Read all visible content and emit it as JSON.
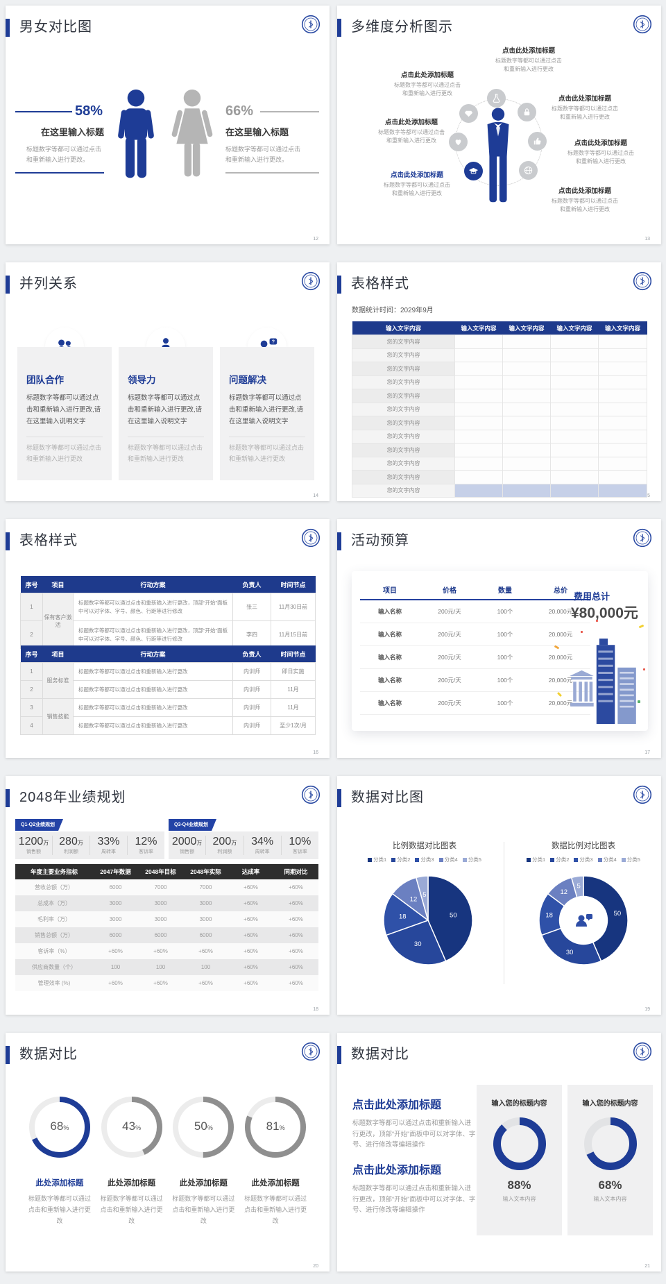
{
  "canvas": {
    "bg": "#eef0f2"
  },
  "brand": {
    "primary": "#1e3c96",
    "table_header": "#1e3a8c",
    "dark_header": "#2e2e2e",
    "highlight_row": "#c6d0e8"
  },
  "shared": {
    "percent_symbol": "%"
  },
  "slides": {
    "s12": {
      "page_num": "12",
      "title": "男女对比图",
      "left": {
        "percent": "58%",
        "subtitle": "在这里输入标题",
        "desc": "标题数字等都可以通过点击和重新输入进行更改。"
      },
      "right": {
        "percent": "66%",
        "subtitle": "在这里输入标题",
        "desc": "标题数字等都可以通过点击和重新输入进行更改。"
      }
    },
    "s13": {
      "page_num": "13",
      "title": "多维度分析图示",
      "item_title": "点击此处添加标题",
      "item_desc": "标题数字等都可以通过点击和重新输入进行更改"
    },
    "s14": {
      "page_num": "14",
      "title": "并列关系",
      "question_mark": "?",
      "card_desc": "标题数字等都可以通过点击和重新输入进行更改,请在这里输入说明文字",
      "card_note": "标题数字等都可以通过点击和重新输入进行更改",
      "cards": [
        {
          "title": "团队合作"
        },
        {
          "title": "领导力"
        },
        {
          "title": "问题解决"
        }
      ]
    },
    "s15": {
      "page_num": "15",
      "title": "表格样式",
      "subtitle": "数据统计时间：2029年9月",
      "header": "输入文字内容",
      "cell": "您的文字内容"
    },
    "s16": {
      "page_num": "16",
      "title": "表格样式",
      "headers": [
        "序号",
        "项目",
        "行动方案",
        "负责人",
        "时间节点"
      ],
      "table_a": {
        "group": "保有客户激活",
        "action": "标题数字等都可以通过点击和重新输入进行更改，顶部“开始”面板中可以对字体、字号、颜色、行距等进行修改",
        "rows": [
          {
            "no": "1",
            "owner": "张三",
            "time": "11月30日前"
          },
          {
            "no": "2",
            "owner": "李四",
            "time": "11月15日前"
          }
        ]
      },
      "table_b": {
        "group_a": "服务标准",
        "group_b": "销售技能",
        "action": "标题数字等都可以通过点击和重新输入进行更改",
        "rows": [
          {
            "no": "1",
            "owner": "内训师",
            "time": "即日实施"
          },
          {
            "no": "2",
            "owner": "内训师",
            "time": "11月"
          },
          {
            "no": "3",
            "owner": "内训师",
            "time": "11月"
          },
          {
            "no": "4",
            "owner": "内训师",
            "time": "至少1次/月"
          }
        ]
      }
    },
    "s17": {
      "page_num": "17",
      "title": "活动预算",
      "headers": [
        "项目",
        "价格",
        "数量",
        "总价"
      ],
      "row": {
        "name": "输入名称",
        "price": "200元/天",
        "qty": "100个",
        "total": "20,000元"
      },
      "total_label": "费用总计",
      "total_value": "¥80,000元"
    },
    "s18": {
      "page_num": "18",
      "title": "2048年业绩规划",
      "panels": [
        {
          "tag": "Q1-Q2业绩规划",
          "stats": [
            {
              "v": "1200",
              "u": "万",
              "l": "销售额"
            },
            {
              "v": "280",
              "u": "万",
              "l": "利润额"
            },
            {
              "v": "33%",
              "u": "",
              "l": "周转率"
            },
            {
              "v": "12%",
              "u": "",
              "l": "客诉率"
            }
          ]
        },
        {
          "tag": "Q3-Q4业绩规划",
          "stats": [
            {
              "v": "2000",
              "u": "万",
              "l": "销售额"
            },
            {
              "v": "200",
              "u": "万",
              "l": "利润额"
            },
            {
              "v": "34%",
              "u": "",
              "l": "周转率"
            },
            {
              "v": "10%",
              "u": "",
              "l": "客诉率"
            }
          ]
        }
      ],
      "table": {
        "headers": [
          "年度主要业务指标",
          "2047年数据",
          "2048年目标",
          "2048年实际",
          "达成率",
          "同期对比"
        ],
        "rows": [
          [
            "营收总额（万）",
            "6000",
            "7000",
            "7000",
            "+60%",
            "+60%"
          ],
          [
            "总成本（万）",
            "3000",
            "3000",
            "3000",
            "+60%",
            "+60%"
          ],
          [
            "毛利率（万）",
            "3000",
            "3000",
            "3000",
            "+60%",
            "+60%"
          ],
          [
            "销售总额（万）",
            "6000",
            "6000",
            "6000",
            "+60%",
            "+60%"
          ],
          [
            "客诉率（%）",
            "+60%",
            "+60%",
            "+60%",
            "+60%",
            "+60%"
          ],
          [
            "供应商数量（个）",
            "100",
            "100",
            "100",
            "+60%",
            "+60%"
          ],
          [
            "管理效率 (%)",
            "+60%",
            "+60%",
            "+60%",
            "+60%",
            "+60%"
          ]
        ]
      }
    },
    "s19": {
      "page_num": "19",
      "title": "数据对比图"
    },
    "s20": {
      "page_num": "20",
      "title": "数据对比",
      "item_title": "此处添加标题",
      "item_desc": "标题数字等都可以通过点击和重新输入进行更改",
      "gauges": [
        {
          "percent": "68"
        },
        {
          "percent": "43"
        },
        {
          "percent": "50"
        },
        {
          "percent": "81"
        }
      ]
    },
    "s21": {
      "page_num": "21",
      "title": "数据对比",
      "block_title": "点击此处添加标题",
      "block_desc": "标题数字等都可以通过点击和重新输入进行更改，顶部“开始”面板中可以对字体、字号、进行修改等编辑操作",
      "panels": [
        {
          "title": "输入您的标题内容",
          "percent": "88%",
          "note": "输入文本内容"
        },
        {
          "title": "输入您的标题内容",
          "percent": "68%",
          "note": "输入文本内容"
        }
      ]
    }
  },
  "chart_data": [
    {
      "type": "pie",
      "title": "比例数据对比图表",
      "legend": [
        "分类1",
        "分类2",
        "分类3",
        "分类4",
        "分类5"
      ],
      "values": [
        50,
        30,
        18,
        12,
        5
      ],
      "colors": [
        "#17357f",
        "#27479b",
        "#2f51a8",
        "#6b80c1",
        "#9aaad6"
      ],
      "legend_position": "top"
    },
    {
      "type": "donut",
      "title": "数据比例对比图表",
      "legend": [
        "分类1",
        "分类2",
        "分类3",
        "分类4",
        "分类5"
      ],
      "values": [
        50,
        30,
        18,
        12,
        5
      ],
      "colors": [
        "#17357f",
        "#27479b",
        "#2f51a8",
        "#6b80c1",
        "#9aaad6"
      ],
      "legend_position": "top"
    },
    {
      "type": "gauge",
      "title": "数据对比",
      "gauges": [
        {
          "value": 68,
          "color": "#1e3c96"
        },
        {
          "value": 43,
          "color": "#8f8f8f"
        },
        {
          "value": 50,
          "color": "#8f8f8f"
        },
        {
          "value": 81,
          "color": "#8f8f8f"
        }
      ]
    },
    {
      "type": "gauge",
      "title": "数据对比",
      "gauges": [
        {
          "value": 88,
          "color": "#1e3c96"
        },
        {
          "value": 68,
          "color": "#1e3c96"
        }
      ]
    },
    {
      "type": "pictogram-comparison",
      "title": "男女对比图",
      "categories": [
        "男",
        "女"
      ],
      "values": [
        58,
        66
      ],
      "unit": "%"
    }
  ]
}
